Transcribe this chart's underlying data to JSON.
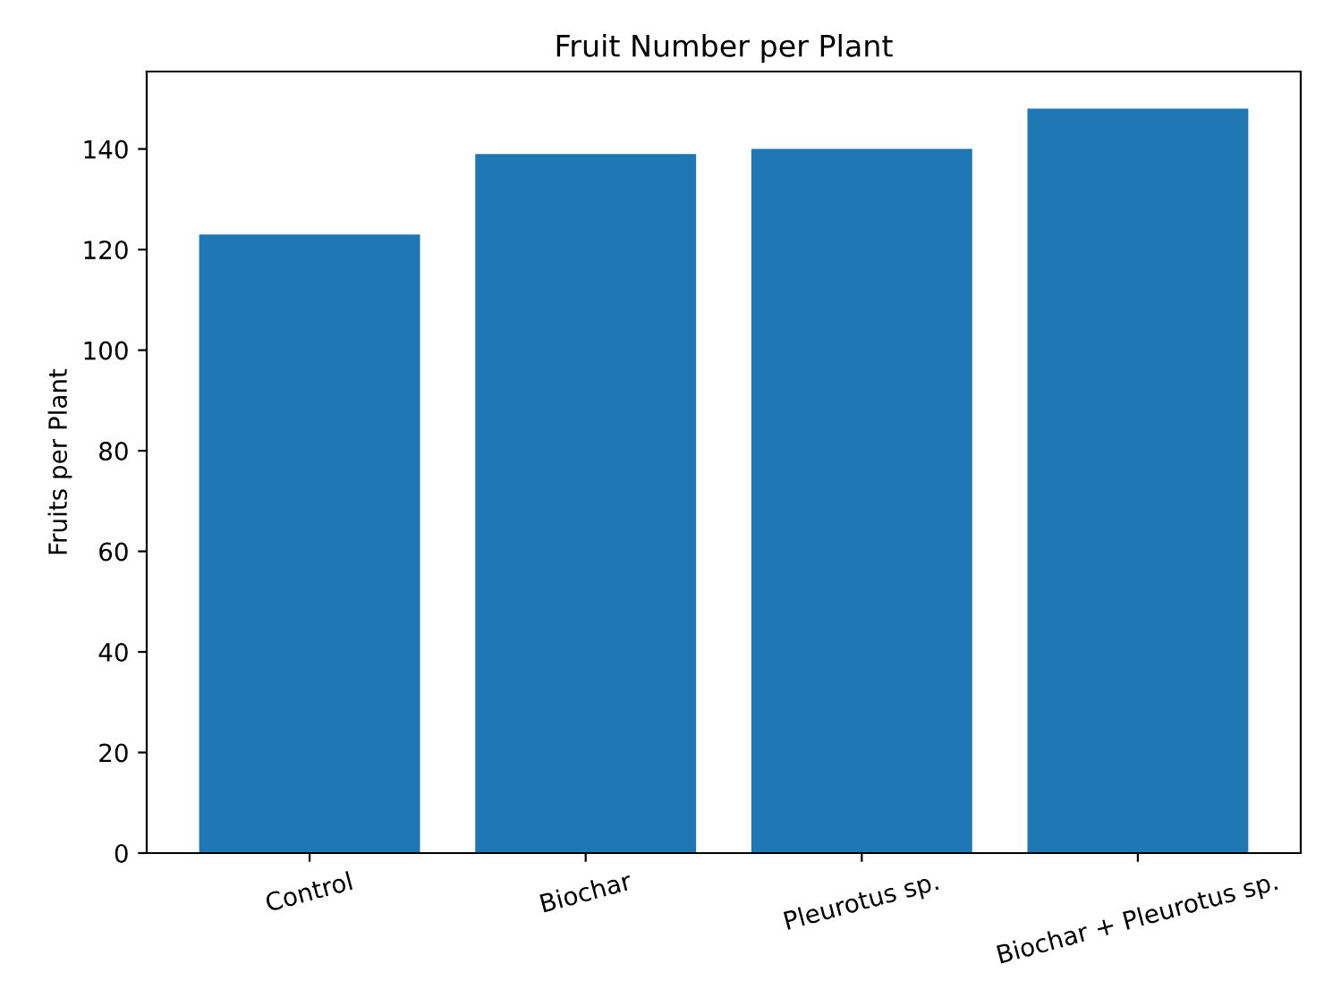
{
  "chart_data": {
    "type": "bar",
    "title": "Fruit Number per Plant",
    "ylabel": "Fruits per Plant",
    "categories": [
      "Control",
      "Biochar",
      "Pleurotus sp.",
      "Biochar + Pleurotus sp."
    ],
    "values": [
      123,
      139,
      140,
      148
    ],
    "color": "#1f77b4",
    "ylim": [
      0,
      155.4
    ],
    "yticks": [
      0,
      20,
      40,
      60,
      80,
      100,
      120,
      140
    ],
    "grid": false
  }
}
